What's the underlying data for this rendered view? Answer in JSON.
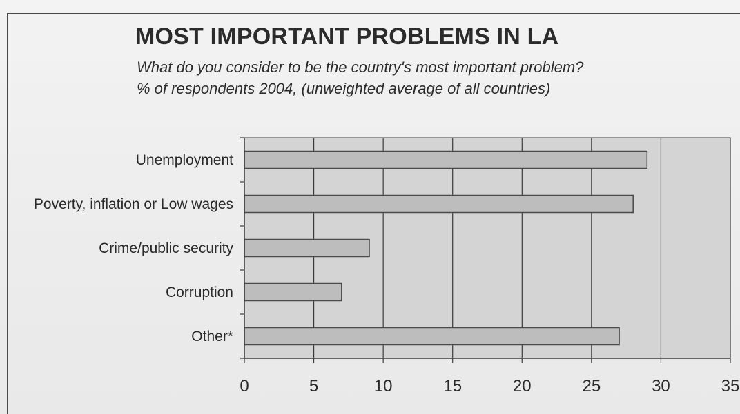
{
  "title": "MOST IMPORTANT PROBLEMS IN LA",
  "subtitle_line1": "What do you consider to be the country's most important problem?",
  "subtitle_line2": "% of respondents 2004, (unweighted average of all countries)",
  "colors": {
    "plot_background": "#d4d4d4",
    "bar_fill": "#bdbdbd",
    "bar_stroke": "#4a4a4a",
    "grid": "#3a3a3a"
  },
  "chart_data": {
    "type": "bar",
    "orientation": "horizontal",
    "title": "MOST IMPORTANT PROBLEMS IN LA",
    "subtitle": "What do you consider to be the country's most important problem? % of respondents 2004, (unweighted average of all countries)",
    "categories": [
      "Unemployment",
      "Poverty, inflation or Low wages",
      "Crime/public security",
      "Corruption",
      "Other*"
    ],
    "values": [
      29,
      28,
      9,
      7,
      27
    ],
    "xlabel": "",
    "ylabel": "",
    "xlim": [
      0,
      35
    ],
    "xticks": [
      0,
      5,
      10,
      15,
      20,
      25,
      30,
      35
    ],
    "grid": true,
    "legend": "none"
  }
}
